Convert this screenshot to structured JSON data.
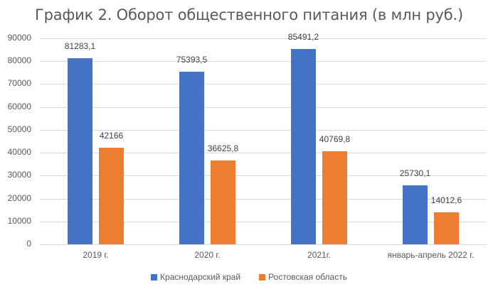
{
  "chart_data": {
    "type": "bar",
    "title": "График 2. Оборот общественного питания (в млн руб.)",
    "xlabel": "",
    "ylabel": "",
    "ylim": [
      0,
      90000
    ],
    "yticks": [
      "0",
      "10000",
      "20000",
      "30000",
      "40000",
      "50000",
      "60000",
      "70000",
      "80000",
      "90000"
    ],
    "grid": true,
    "legend_position": "bottom",
    "categories": [
      "2019 г.",
      "2020 г.",
      "2021г.",
      "январь-апрель 2022 г."
    ],
    "series": [
      {
        "name": "Краснодарский край",
        "color": "#4472c4",
        "values": [
          81283.1,
          75393.5,
          85491.2,
          25730.1
        ],
        "labels": [
          "81283,1",
          "75393,5",
          "85491,2",
          "25730,1"
        ]
      },
      {
        "name": "Ростовская область",
        "color": "#ed7d31",
        "values": [
          42166,
          36625.8,
          40769.8,
          14012.6
        ],
        "labels": [
          "42166",
          "36625,8",
          "40769,8",
          "14012,6"
        ]
      }
    ]
  }
}
